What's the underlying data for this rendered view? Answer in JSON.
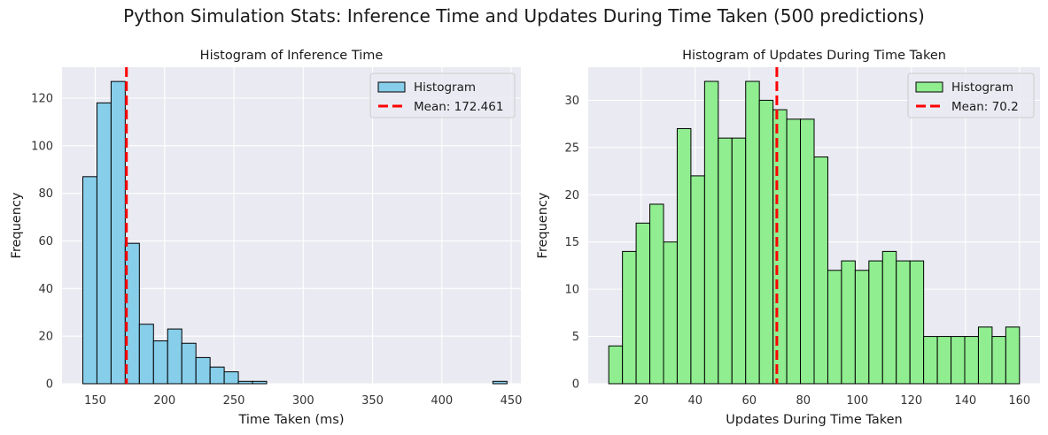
{
  "suptitle": "Python Simulation Stats: Inference Time and Updates During Time Taken (500 predictions)",
  "chart_data": [
    {
      "type": "bar",
      "subtype": "histogram",
      "title": "Histogram of Inference Time",
      "xlabel": "Time Taken (ms)",
      "ylabel": "Frequency",
      "xlim": [
        126,
        457
      ],
      "ylim": [
        0,
        133
      ],
      "xticks": [
        150,
        200,
        250,
        300,
        350,
        400,
        450
      ],
      "yticks": [
        0,
        20,
        40,
        60,
        80,
        100,
        120
      ],
      "bin_edges": [
        141,
        151.2,
        161.4,
        171.6,
        181.8,
        192,
        202.2,
        212.4,
        222.6,
        232.8,
        243,
        253.2,
        263.4,
        273.6,
        283.8,
        294,
        304.2,
        314.4,
        324.6,
        334.8,
        345,
        355.2,
        365.4,
        375.6,
        385.8,
        396,
        406.2,
        416.4,
        426.6,
        436.8,
        447
      ],
      "counts": [
        87,
        118,
        127,
        59,
        25,
        18,
        23,
        17,
        11,
        7,
        5,
        1,
        1,
        0,
        0,
        0,
        0,
        0,
        0,
        0,
        0,
        0,
        0,
        0,
        0,
        0,
        0,
        0,
        0,
        1
      ],
      "bar_color": "#87ceeb",
      "mean": 172.461,
      "mean_color": "#ff0000",
      "grid": true,
      "legend_position": "top-right",
      "legend": [
        "Histogram",
        "Mean: 172.461"
      ]
    },
    {
      "type": "bar",
      "subtype": "histogram",
      "title": "Histogram of Updates During Time Taken",
      "xlabel": "Updates During Time Taken",
      "ylabel": "Frequency",
      "xlim": [
        0.4,
        167.6
      ],
      "ylim": [
        0,
        33.5
      ],
      "xticks": [
        20,
        40,
        60,
        80,
        100,
        120,
        140,
        160
      ],
      "yticks": [
        0,
        5,
        10,
        15,
        20,
        25,
        30
      ],
      "bin_edges": [
        8,
        13.07,
        18.13,
        23.2,
        28.27,
        33.33,
        38.4,
        43.47,
        48.53,
        53.6,
        58.67,
        63.73,
        68.8,
        73.87,
        78.93,
        84,
        89.07,
        94.13,
        99.2,
        104.27,
        109.33,
        114.4,
        119.47,
        124.53,
        129.6,
        134.67,
        139.73,
        144.8,
        149.87,
        154.93,
        160
      ],
      "counts": [
        4,
        14,
        17,
        19,
        15,
        27,
        22,
        32,
        26,
        26,
        32,
        30,
        29,
        28,
        28,
        24,
        12,
        13,
        12,
        13,
        14,
        13,
        13,
        5,
        5,
        5,
        5,
        6,
        5,
        6
      ],
      "bar_color": "#90ee90",
      "mean": 70.2,
      "mean_color": "#ff0000",
      "grid": true,
      "legend_position": "top-right",
      "legend": [
        "Histogram",
        "Mean: 70.2"
      ]
    }
  ]
}
